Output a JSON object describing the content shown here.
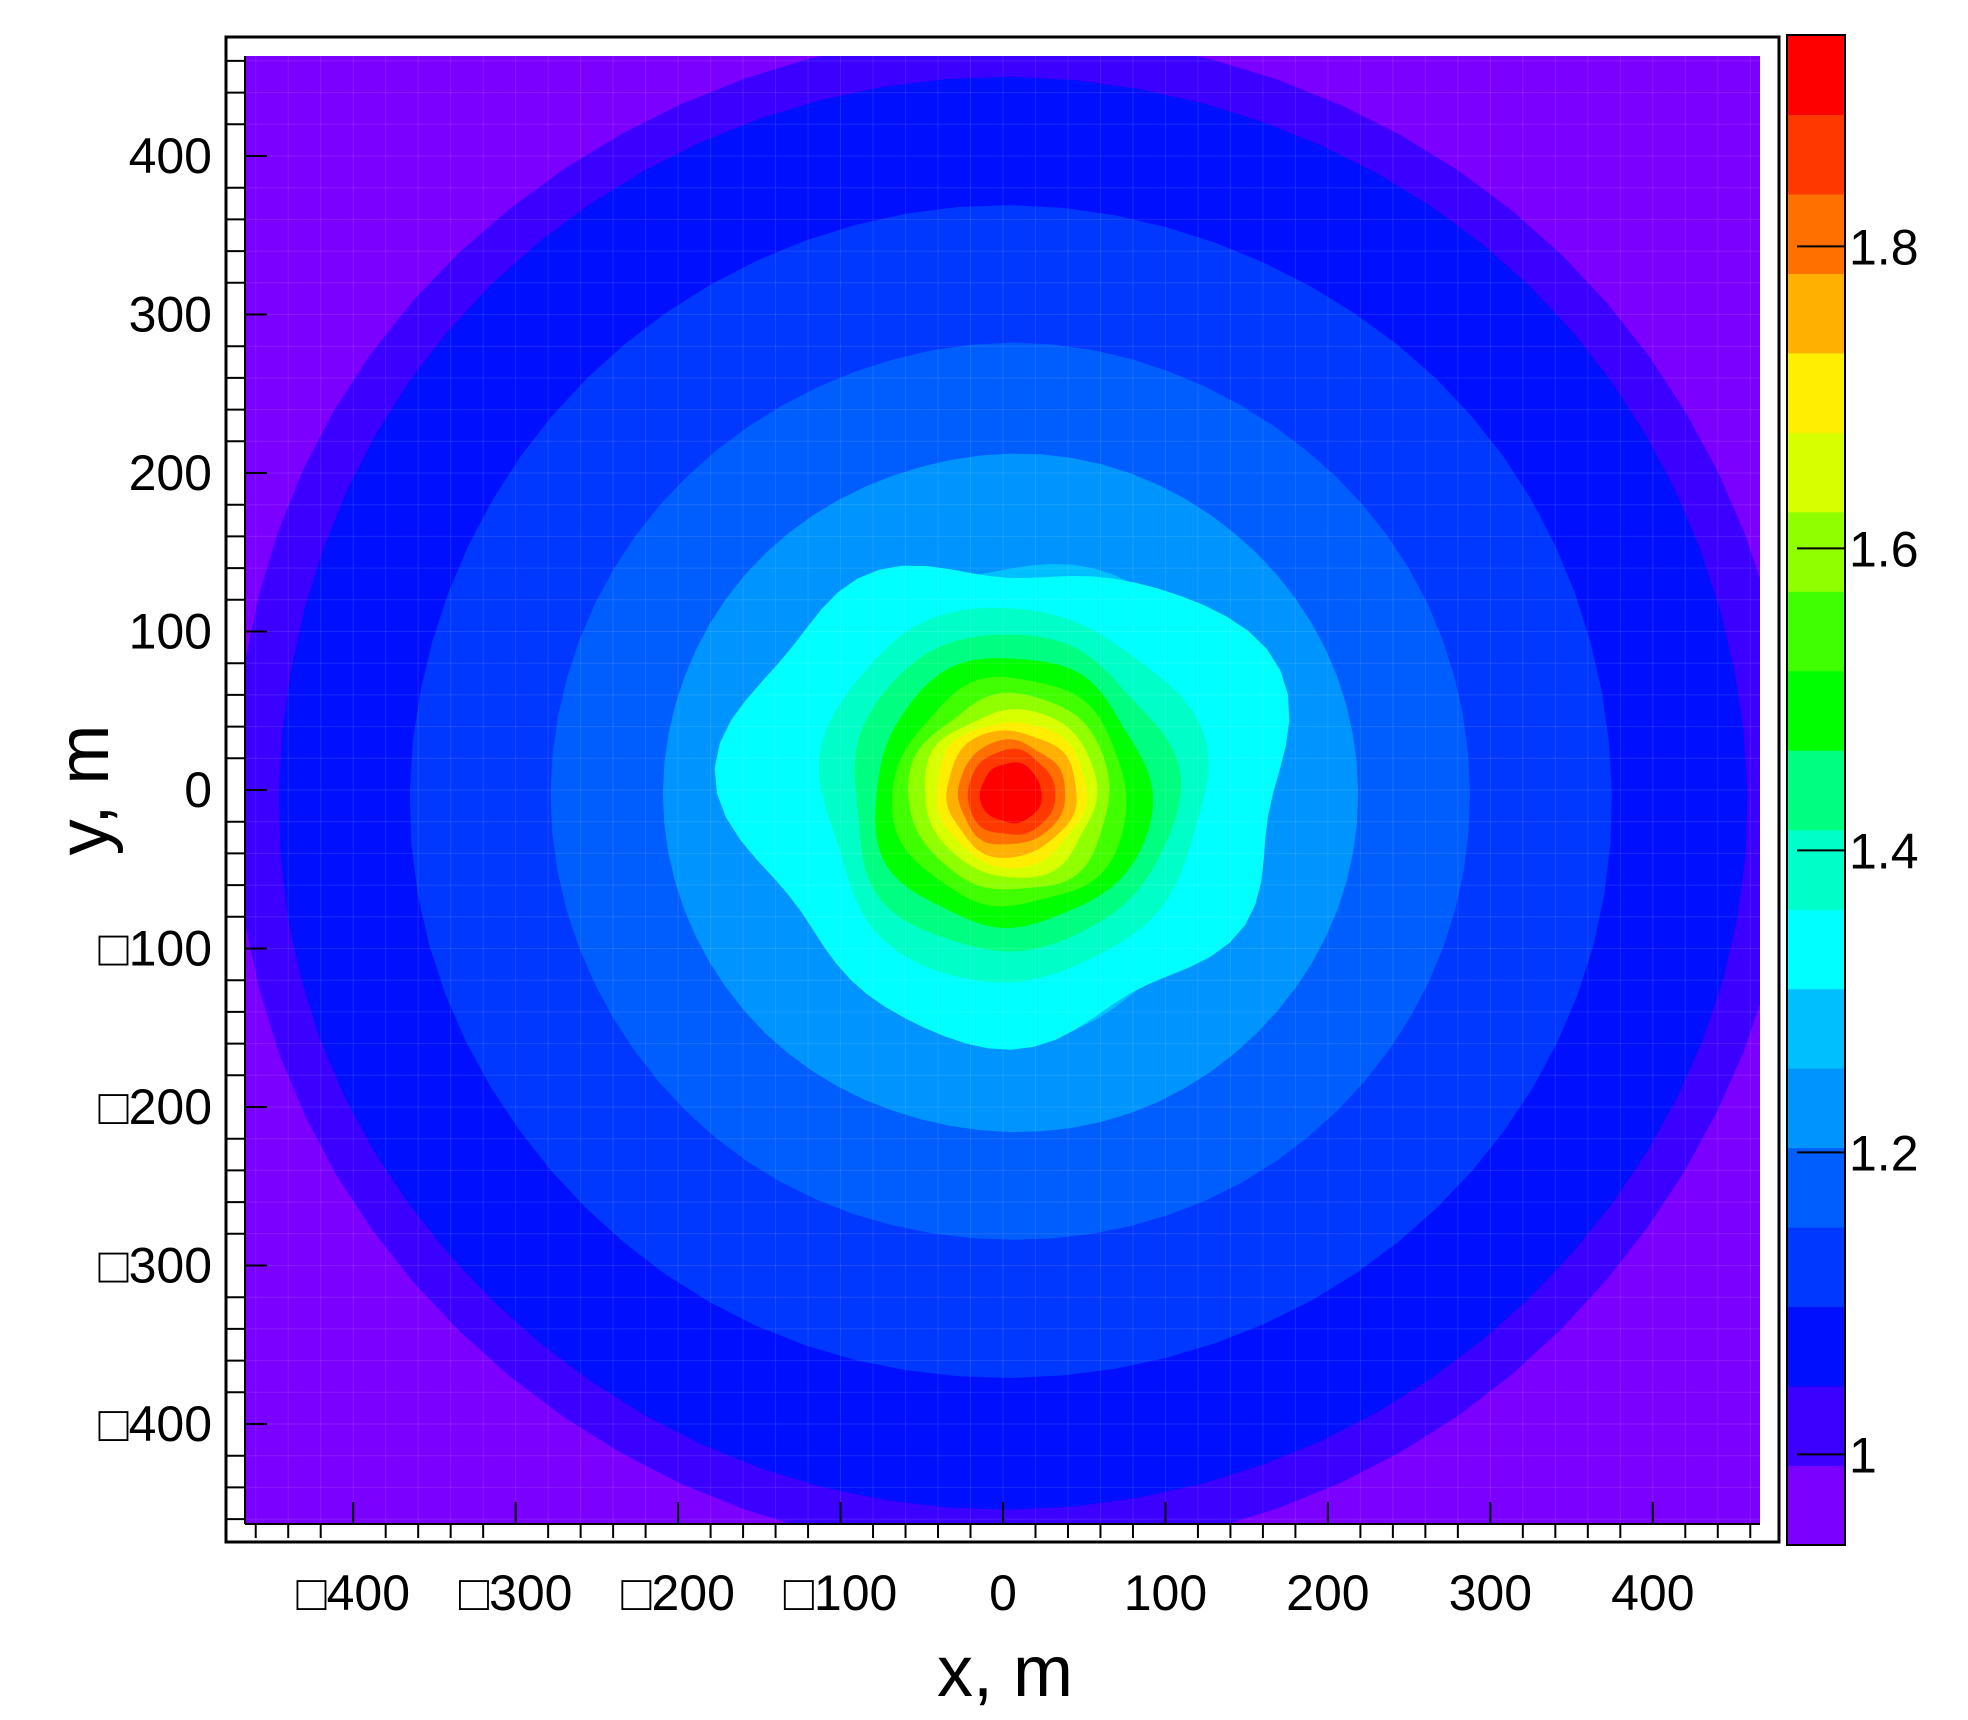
{
  "chart_data": {
    "type": "heatmap",
    "title": "",
    "xlabel": "x, m",
    "ylabel": "y, m",
    "xlim": [
      -475,
      475
    ],
    "ylim": [
      -475,
      475
    ],
    "x_ticks": [
      -400,
      -300,
      -200,
      -100,
      0,
      100,
      200,
      300,
      400
    ],
    "y_ticks": [
      -400,
      -300,
      -200,
      -100,
      0,
      100,
      200,
      300,
      400
    ],
    "x_tick_labels": [
      "□400",
      "□300",
      "□200",
      "□100",
      "0",
      "100",
      "200",
      "300",
      "400"
    ],
    "y_tick_labels": [
      "□400",
      "□300",
      "□200",
      "□100",
      "0",
      "100",
      "200",
      "300",
      "400"
    ],
    "colorbar": {
      "min": 0.94,
      "max": 1.94,
      "ticks": [
        1.0,
        1.2,
        1.4,
        1.6,
        1.8
      ],
      "tick_labels": [
        "1",
        "1.2",
        "1.4",
        "1.6",
        "1.8"
      ],
      "levels": [
        "#7c00ff",
        "#3b00ff",
        "#0010ff",
        "#0038ff",
        "#005eff",
        "#0094ff",
        "#00bfff",
        "#00ffff",
        "#00ffc8",
        "#00ff80",
        "#00ff00",
        "#40ff00",
        "#90ff00",
        "#d8ff00",
        "#ffee00",
        "#ffb000",
        "#ff7000",
        "#ff3800",
        "#ff0000"
      ]
    },
    "contour_levels": [
      {
        "value": 0.96,
        "radius": 520,
        "color": "#7c00ff"
      },
      {
        "value": 1.0,
        "radius": 480,
        "color": "#3b00ff"
      },
      {
        "value": 1.03,
        "radius": 452,
        "color": "#0010ff"
      },
      {
        "value": 1.1,
        "radius": 370,
        "color": "#0038ff"
      },
      {
        "value": 1.15,
        "radius": 283,
        "color": "#005eff"
      },
      {
        "value": 1.18,
        "radius": 214,
        "color": "#0094ff"
      },
      {
        "value": 1.22,
        "radius": 147,
        "color": "#00bfff"
      },
      {
        "value": 1.26,
        "radius": 160,
        "color": "#00ffff"
      },
      {
        "value": 1.32,
        "radius": 118,
        "color": "#00ffc8"
      },
      {
        "value": 1.38,
        "radius": 100,
        "color": "#00ff80"
      },
      {
        "value": 1.44,
        "radius": 85,
        "color": "#00ff00"
      },
      {
        "value": 1.5,
        "radius": 72,
        "color": "#40ff00"
      },
      {
        "value": 1.56,
        "radius": 62,
        "color": "#90ff00"
      },
      {
        "value": 1.62,
        "radius": 53,
        "color": "#d8ff00"
      },
      {
        "value": 1.68,
        "radius": 46,
        "color": "#ffee00"
      },
      {
        "value": 1.74,
        "radius": 40,
        "color": "#ffb000"
      },
      {
        "value": 1.8,
        "radius": 33,
        "color": "#ff7000"
      },
      {
        "value": 1.86,
        "radius": 27,
        "color": "#ff3800"
      },
      {
        "value": 1.92,
        "radius": 19,
        "color": "#ff0000"
      }
    ]
  }
}
